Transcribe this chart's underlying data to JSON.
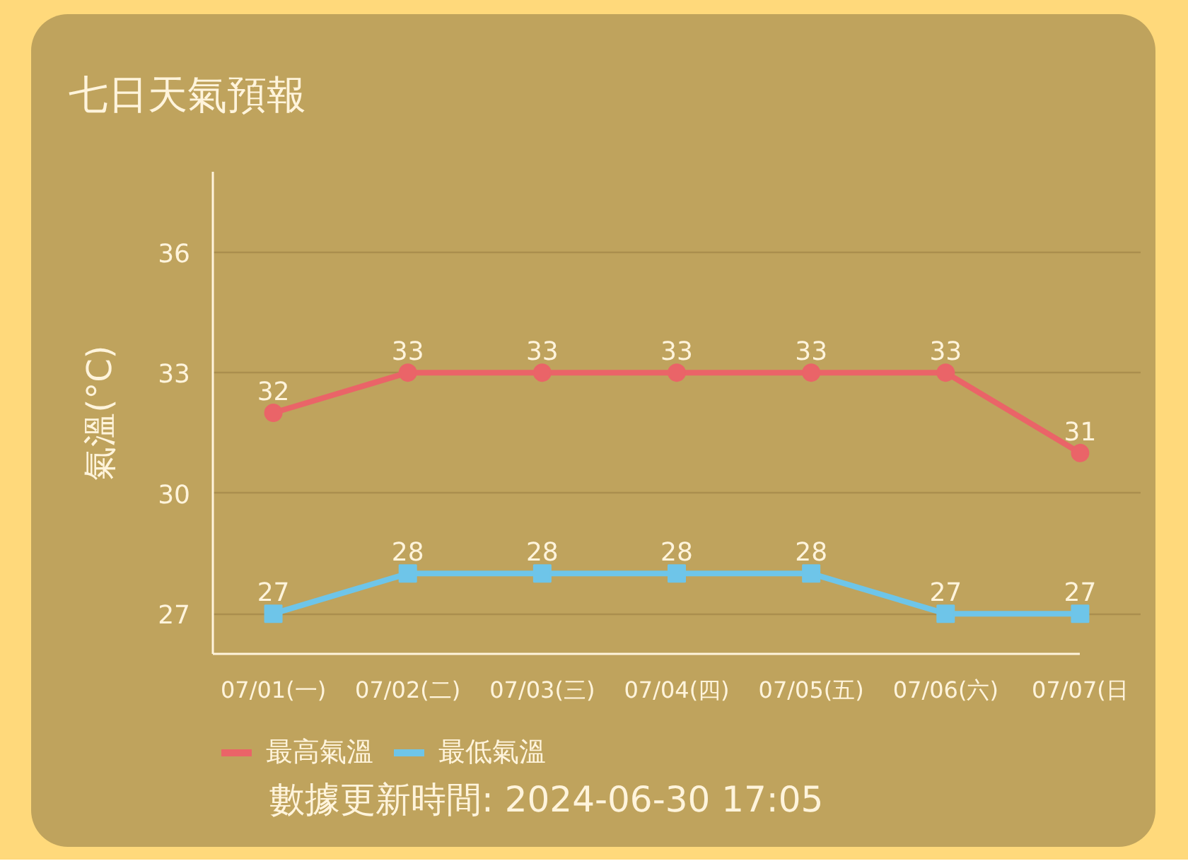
{
  "chart_data": {
    "type": "line",
    "title": "七日天氣預報",
    "ylabel": "氣溫(°C)",
    "categories": [
      "07/01(一)",
      "07/02(二)",
      "07/03(三)",
      "07/04(四)",
      "07/05(五)",
      "07/06(六)",
      "07/07(日"
    ],
    "series": [
      {
        "name": "最高氣溫",
        "color": "#ea6468",
        "marker": "circle",
        "values": [
          32,
          33,
          33,
          33,
          33,
          33,
          31
        ]
      },
      {
        "name": "最低氣溫",
        "color": "#6ec5e9",
        "marker": "square",
        "values": [
          27,
          28,
          28,
          28,
          28,
          27,
          27
        ]
      }
    ],
    "ylim": [
      26,
      38
    ],
    "yticks": [
      27,
      30,
      33,
      36
    ],
    "grid": "y",
    "legend": "bottom",
    "data_labels": true,
    "annotations": [
      "數據更新時間: 2024-06-30 17:05"
    ]
  }
}
